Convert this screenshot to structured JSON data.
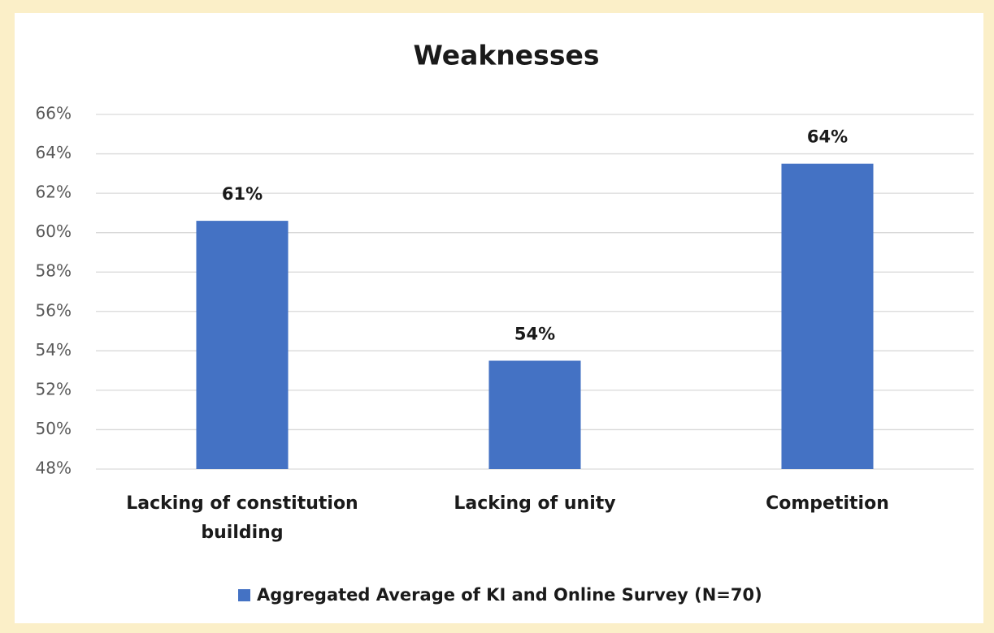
{
  "chart_data": {
    "type": "bar",
    "title": "Weaknesses",
    "categories": [
      "Lacking of constitution building",
      "Lacking of unity",
      "Competition"
    ],
    "series": [
      {
        "name": "Aggregated Average of KI and Online Survey (N=70)",
        "color": "#4472c4",
        "values": [
          60.6,
          53.5,
          63.5
        ],
        "value_labels": [
          "61%",
          "54%",
          "64%"
        ]
      }
    ],
    "ylim": [
      48,
      66
    ],
    "yticks": [
      {
        "value": 48,
        "label": "48%"
      },
      {
        "value": 50,
        "label": "50%"
      },
      {
        "value": 52,
        "label": "52%"
      },
      {
        "value": 54,
        "label": "54%"
      },
      {
        "value": 56,
        "label": "56%"
      },
      {
        "value": 58,
        "label": "58%"
      },
      {
        "value": 60,
        "label": "60%"
      },
      {
        "value": 62,
        "label": "62%"
      },
      {
        "value": 64,
        "label": "64%"
      },
      {
        "value": 66,
        "label": "66%"
      }
    ],
    "grid": true,
    "legend": "bottom"
  }
}
